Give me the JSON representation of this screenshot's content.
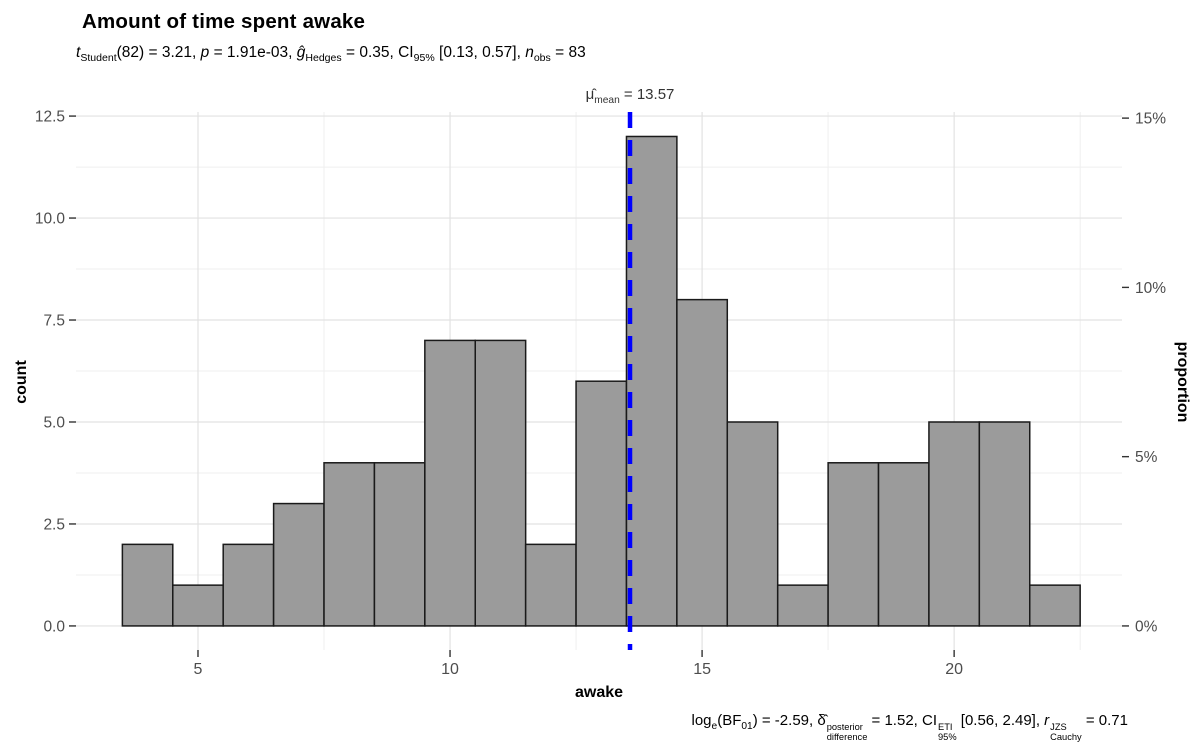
{
  "chart_data": {
    "type": "bar",
    "subtype": "histogram",
    "title": "Amount of time spent awake",
    "xlabel": "awake",
    "ylabel_left": "count",
    "ylabel_right": "proportion",
    "n_obs": 83,
    "bin_width": 1,
    "x": [
      4,
      5,
      6,
      7,
      8,
      9,
      10,
      11,
      12,
      13,
      14,
      15,
      16,
      17,
      18,
      19,
      20,
      21,
      22
    ],
    "values": [
      2,
      1,
      2,
      3,
      4,
      4,
      7,
      7,
      2,
      6,
      12,
      8,
      5,
      1,
      4,
      4,
      5,
      5,
      1
    ],
    "x_range": [
      2.58,
      23.33
    ],
    "y_range": [
      -0.59,
      12.6
    ],
    "x_major_ticks": [
      5,
      10,
      15,
      20
    ],
    "x_major_tick_labels": [
      "5",
      "10",
      "15",
      "20"
    ],
    "x_minor_ticks": [
      7.5,
      12.5,
      17.5,
      22.5
    ],
    "y_major_ticks": [
      0,
      2.5,
      5,
      7.5,
      10,
      12.5
    ],
    "y_major_tick_labels": [
      "0.0",
      "2.5",
      "5.0",
      "7.5",
      "10.0",
      "12.5"
    ],
    "y_minor_ticks": [
      1.25,
      3.75,
      6.25,
      8.75,
      11.25
    ],
    "right_ticks_percent": [
      0,
      5,
      10,
      15
    ],
    "right_tick_labels": [
      "0%",
      "5%",
      "10%",
      "15%"
    ],
    "grid": true,
    "legend": "none",
    "mean_line": {
      "x": 13.57,
      "color": "#0000ff",
      "style": "dashed",
      "label_segments": [
        {
          "t": "μ̂"
        },
        {
          "t": "mean",
          "sub": 1
        },
        {
          "t": " = 13.57"
        }
      ]
    },
    "subtitle_segments": [
      {
        "t": "t",
        "i": 1
      },
      {
        "t": "Student",
        "sub": 1
      },
      {
        "t": "(82) = 3.21, "
      },
      {
        "t": "p",
        "i": 1
      },
      {
        "t": " = 1.91e-03, "
      },
      {
        "t": "ĝ",
        "i": 1
      },
      {
        "t": "Hedges",
        "sub": 1
      },
      {
        "t": " = 0.35, CI"
      },
      {
        "t": "95%",
        "sub": 1
      },
      {
        "t": " [0.13, 0.57], "
      },
      {
        "t": "n",
        "i": 1
      },
      {
        "t": "obs",
        "sub": 1
      },
      {
        "t": " = 83"
      }
    ],
    "caption_segments": [
      {
        "t": "log"
      },
      {
        "t": "e",
        "sub": 1
      },
      {
        "t": "(BF"
      },
      {
        "t": "01",
        "sub": 1
      },
      {
        "t": ") = -2.59, "
      },
      {
        "t": "δ̂"
      },
      {
        "stack": [
          "posterior",
          "difference"
        ]
      },
      {
        "t": " = 1.52, CI"
      },
      {
        "stack": [
          "ETI",
          "95%"
        ]
      },
      {
        "t": " [0.56, 2.49], "
      },
      {
        "t": "r",
        "i": 1
      },
      {
        "stack": [
          "JZS",
          "Cauchy"
        ]
      },
      {
        "t": " = 0.71"
      }
    ],
    "colors": {
      "bar_fill": "#9b9b9b",
      "bar_stroke": "#1a1a1a",
      "grid_major": "#e2e2e2",
      "grid_minor": "#efefef",
      "axis_tick": "#333333",
      "tick_text": "#4d4d4d",
      "mean_line": "#0000ff"
    }
  }
}
